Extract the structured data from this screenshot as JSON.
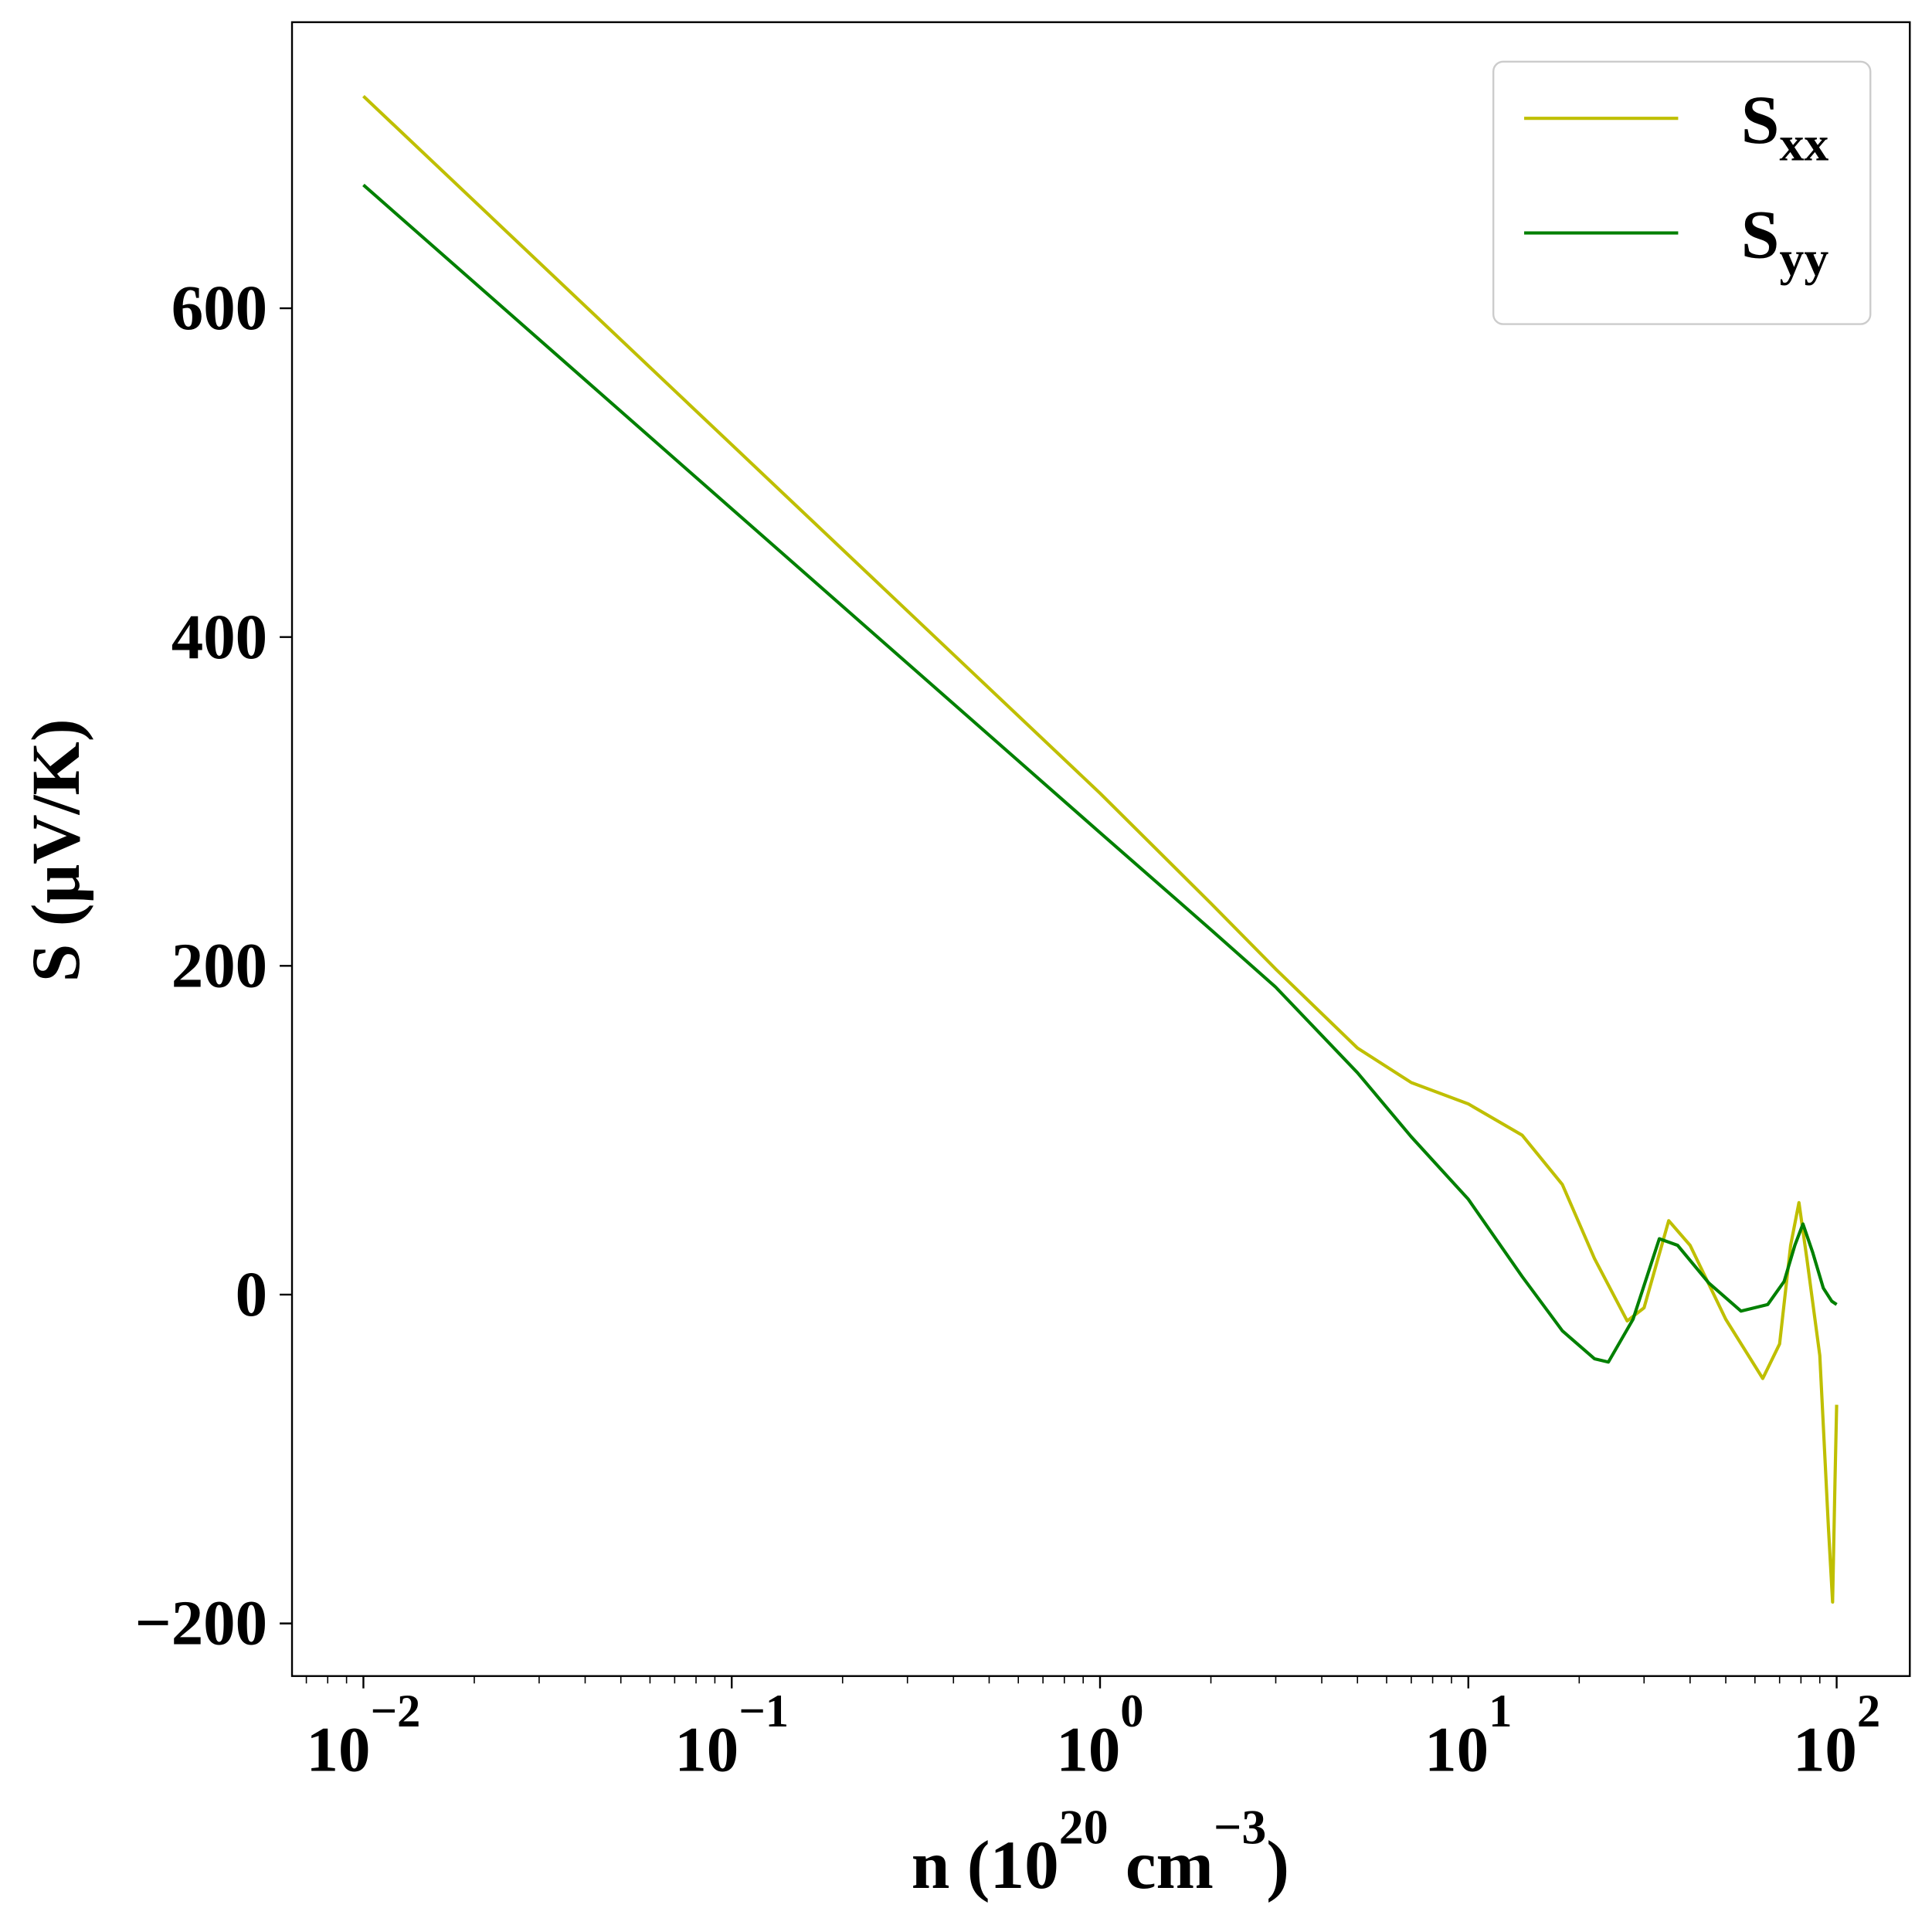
{
  "chart_data": {
    "type": "line",
    "xlabel": [
      "n (10",
      "20",
      " cm",
      "−3",
      ")"
    ],
    "ylabel": "S (μV/K)",
    "xscale": "log",
    "xlim": [
      0.0064,
      158
    ],
    "ylim": [
      -232,
      774
    ],
    "xticks": [
      {
        "value": 0.01,
        "label": "10",
        "exponent": "−2"
      },
      {
        "value": 0.1,
        "label": "10",
        "exponent": "−1"
      },
      {
        "value": 1,
        "label": "10",
        "exponent": "0"
      },
      {
        "value": 10,
        "label": "10",
        "exponent": "1"
      },
      {
        "value": 100,
        "label": "10",
        "exponent": "2"
      }
    ],
    "xminorticks": [
      0.007,
      0.008,
      0.009,
      0.02,
      0.03,
      0.04,
      0.05,
      0.06,
      0.07,
      0.08,
      0.09,
      0.2,
      0.3,
      0.4,
      0.5,
      0.6,
      0.7,
      0.8,
      0.9,
      2,
      3,
      4,
      5,
      6,
      7,
      8,
      9,
      20,
      30,
      40,
      50,
      60,
      70,
      80,
      90
    ],
    "yticks": [
      {
        "value": -200,
        "label": "−200"
      },
      0,
      200,
      400,
      600
    ],
    "legend": "upper right",
    "series": [
      {
        "name": "S",
        "subscript": "xx",
        "color": "#bfbf00",
        "x": [
          0.01,
          0.1,
          1,
          2,
          3,
          5,
          7,
          10,
          14,
          18,
          22,
          27,
          30,
          35,
          40,
          50,
          63,
          70,
          75,
          79,
          83,
          90,
          95,
          97.5,
          99,
          100
        ],
        "values": [
          729,
          517,
          305,
          238,
          198,
          150,
          129,
          116,
          97,
          67,
          22,
          -16,
          -8,
          45,
          30,
          -15,
          -51,
          -30,
          30,
          56,
          22,
          -37,
          -142,
          -187,
          -112,
          -67
        ]
      },
      {
        "name": "S",
        "subscript": "yy",
        "color": "#008000",
        "x": [
          0.01,
          0.1,
          1,
          2,
          3,
          5,
          7,
          10,
          14,
          18,
          22,
          24,
          28,
          33,
          37,
          45,
          55,
          65,
          72,
          77,
          81,
          86,
          92,
          97,
          100
        ],
        "values": [
          675,
          478,
          281,
          222,
          187,
          135,
          96,
          58,
          11,
          -22,
          -39,
          -41,
          -15,
          34,
          30,
          7,
          -10,
          -6,
          8,
          30,
          43,
          26,
          4,
          -4,
          -6
        ]
      }
    ]
  }
}
